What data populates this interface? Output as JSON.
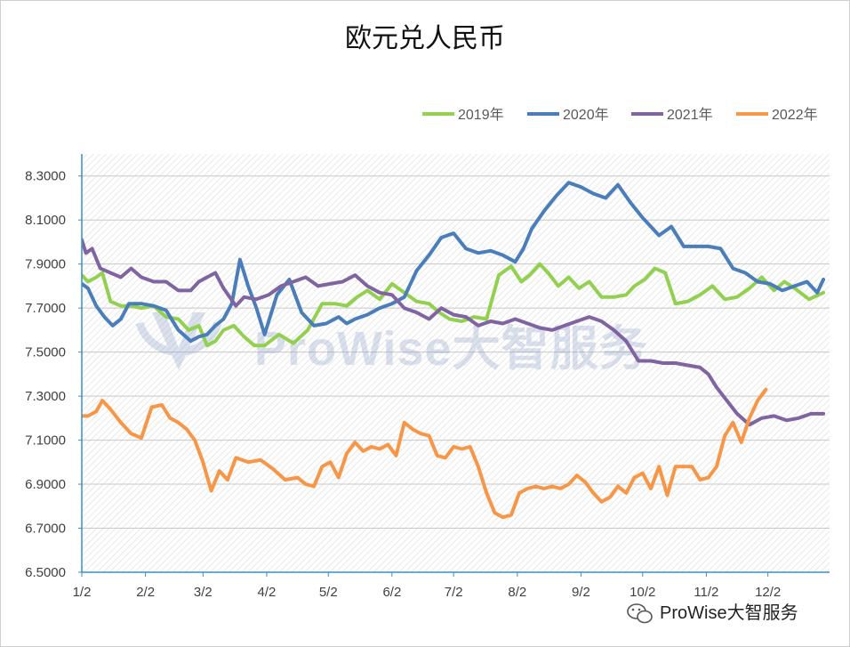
{
  "chart_data": {
    "type": "line",
    "title": "欧元兑人民币",
    "xlabel": "",
    "ylabel": "",
    "x_ticks": [
      "1/2",
      "2/2",
      "3/2",
      "4/2",
      "5/2",
      "6/2",
      "7/2",
      "8/2",
      "9/2",
      "10/2",
      "11/2",
      "12/2"
    ],
    "ylim": [
      6.5,
      8.4
    ],
    "y_ticks": [
      "6.5000",
      "6.7000",
      "6.9000",
      "7.1000",
      "7.3000",
      "7.5000",
      "7.7000",
      "7.9000",
      "8.1000",
      "8.3000"
    ],
    "grid": true,
    "legend_position": "top-right",
    "series": [
      {
        "name": "2019年",
        "color": "#92d050",
        "x": [
          1,
          4,
          8,
          11,
          15,
          20,
          25,
          30,
          36,
          42,
          48,
          53,
          58,
          62,
          66,
          70,
          75,
          80,
          85,
          90,
          97,
          104,
          111,
          118,
          124,
          130,
          135,
          140,
          146,
          152,
          158,
          164,
          170,
          175,
          180,
          186,
          192,
          198,
          204,
          210,
          215,
          219,
          224,
          228,
          233,
          238,
          243,
          248,
          254,
          260,
          266,
          270,
          275,
          280,
          285,
          290,
          296,
          302,
          308,
          314,
          320,
          326,
          332,
          338,
          343,
          348,
          355,
          362
        ],
        "values": [
          7.85,
          7.82,
          7.84,
          7.86,
          7.73,
          7.71,
          7.71,
          7.7,
          7.71,
          7.66,
          7.65,
          7.6,
          7.62,
          7.53,
          7.55,
          7.6,
          7.62,
          7.57,
          7.53,
          7.53,
          7.58,
          7.54,
          7.6,
          7.72,
          7.72,
          7.71,
          7.75,
          7.78,
          7.74,
          7.81,
          7.77,
          7.73,
          7.72,
          7.68,
          7.65,
          7.64,
          7.66,
          7.65,
          7.85,
          7.89,
          7.82,
          7.85,
          7.9,
          7.86,
          7.8,
          7.84,
          7.79,
          7.82,
          7.75,
          7.75,
          7.76,
          7.8,
          7.83,
          7.88,
          7.86,
          7.72,
          7.73,
          7.76,
          7.8,
          7.74,
          7.75,
          7.79,
          7.84,
          7.78,
          7.82,
          7.79,
          7.74,
          7.77
        ]
      },
      {
        "name": "2020年",
        "color": "#4a7ebb",
        "x": [
          1,
          4,
          8,
          12,
          16,
          20,
          24,
          30,
          36,
          42,
          48,
          54,
          58,
          62,
          66,
          70,
          74,
          78,
          82,
          86,
          90,
          96,
          102,
          108,
          114,
          120,
          126,
          130,
          134,
          140,
          146,
          152,
          158,
          164,
          170,
          176,
          182,
          188,
          194,
          200,
          206,
          212,
          216,
          220,
          226,
          232,
          238,
          244,
          250,
          256,
          262,
          268,
          274,
          278,
          282,
          288,
          294,
          300,
          306,
          312,
          318,
          324,
          330,
          336,
          342,
          348,
          354,
          359,
          362
        ],
        "values": [
          7.81,
          7.79,
          7.71,
          7.66,
          7.62,
          7.65,
          7.72,
          7.72,
          7.71,
          7.69,
          7.6,
          7.55,
          7.57,
          7.58,
          7.62,
          7.65,
          7.72,
          7.92,
          7.8,
          7.7,
          7.58,
          7.76,
          7.83,
          7.68,
          7.62,
          7.63,
          7.66,
          7.63,
          7.65,
          7.67,
          7.7,
          7.72,
          7.75,
          7.87,
          7.94,
          8.02,
          8.04,
          7.97,
          7.95,
          7.96,
          7.94,
          7.91,
          7.97,
          8.06,
          8.14,
          8.21,
          8.27,
          8.25,
          8.22,
          8.2,
          8.26,
          8.18,
          8.11,
          8.07,
          8.03,
          8.07,
          7.98,
          7.98,
          7.98,
          7.97,
          7.88,
          7.86,
          7.82,
          7.81,
          7.78,
          7.8,
          7.82,
          7.77,
          7.83
        ]
      },
      {
        "name": "2021年",
        "color": "#8064a2",
        "x": [
          1,
          3,
          6,
          10,
          15,
          20,
          25,
          30,
          36,
          42,
          48,
          54,
          58,
          62,
          66,
          70,
          76,
          80,
          86,
          92,
          98,
          104,
          110,
          116,
          122,
          128,
          134,
          140,
          146,
          152,
          158,
          164,
          170,
          176,
          182,
          188,
          194,
          200,
          206,
          212,
          218,
          224,
          230,
          236,
          242,
          248,
          254,
          260,
          266,
          272,
          278,
          284,
          290,
          296,
          302,
          306,
          310,
          315,
          320,
          326,
          332,
          338,
          344,
          350,
          356,
          362
        ],
        "values": [
          8.01,
          7.95,
          7.97,
          7.88,
          7.86,
          7.84,
          7.88,
          7.84,
          7.82,
          7.82,
          7.78,
          7.78,
          7.82,
          7.84,
          7.86,
          7.79,
          7.71,
          7.75,
          7.74,
          7.76,
          7.8,
          7.82,
          7.84,
          7.8,
          7.81,
          7.82,
          7.85,
          7.8,
          7.77,
          7.76,
          7.7,
          7.68,
          7.65,
          7.7,
          7.67,
          7.66,
          7.62,
          7.64,
          7.63,
          7.65,
          7.63,
          7.61,
          7.6,
          7.62,
          7.64,
          7.66,
          7.64,
          7.6,
          7.55,
          7.46,
          7.46,
          7.45,
          7.45,
          7.44,
          7.43,
          7.4,
          7.34,
          7.28,
          7.22,
          7.17,
          7.2,
          7.21,
          7.19,
          7.2,
          7.22,
          7.22
        ]
      },
      {
        "name": "2022年",
        "color": "#f79646",
        "x": [
          1,
          4,
          8,
          11,
          15,
          20,
          25,
          30,
          35,
          40,
          44,
          48,
          52,
          56,
          60,
          64,
          68,
          72,
          76,
          82,
          88,
          94,
          100,
          106,
          110,
          114,
          118,
          122,
          126,
          130,
          134,
          138,
          142,
          146,
          150,
          154,
          158,
          162,
          166,
          170,
          174,
          178,
          182,
          186,
          190,
          194,
          198,
          202,
          206,
          210,
          214,
          218,
          222,
          226,
          230,
          234,
          238,
          242,
          246,
          250,
          254,
          258,
          262,
          266,
          270,
          274,
          278,
          282,
          286,
          290,
          294,
          298,
          302,
          306
        ],
        "values": [
          7.21,
          7.21,
          7.23,
          7.28,
          7.24,
          7.18,
          7.13,
          7.11,
          7.25,
          7.26,
          7.2,
          7.18,
          7.15,
          7.1,
          7.0,
          6.87,
          6.96,
          6.92,
          7.02,
          7.0,
          7.01,
          6.97,
          6.92,
          6.93,
          6.9,
          6.89,
          6.98,
          7.0,
          6.93,
          7.04,
          7.09,
          7.05,
          7.07,
          7.06,
          7.08,
          7.03,
          7.18,
          7.15,
          7.13,
          7.12,
          7.03,
          7.02,
          7.07,
          7.06,
          7.07,
          6.98,
          6.86,
          6.77,
          6.75,
          6.76,
          6.86,
          6.88,
          6.89,
          6.88,
          6.89,
          6.88,
          6.9,
          6.94,
          6.91,
          6.86,
          6.82,
          6.84,
          6.89,
          6.86,
          6.93,
          6.95,
          6.88,
          6.98,
          6.85,
          6.98,
          6.98,
          6.98,
          6.92,
          6.93
        ]
      },
      {
        "name": "",
        "color": "#f79646",
        "x": [
          306,
          310,
          314,
          318,
          322,
          326,
          330,
          334
        ],
        "values": [
          6.93,
          6.98,
          7.12,
          7.18,
          7.09,
          7.2,
          7.28,
          7.33
        ]
      }
    ],
    "watermark": "ProWise大智服务",
    "logo_label": "ProWise大智服务"
  }
}
